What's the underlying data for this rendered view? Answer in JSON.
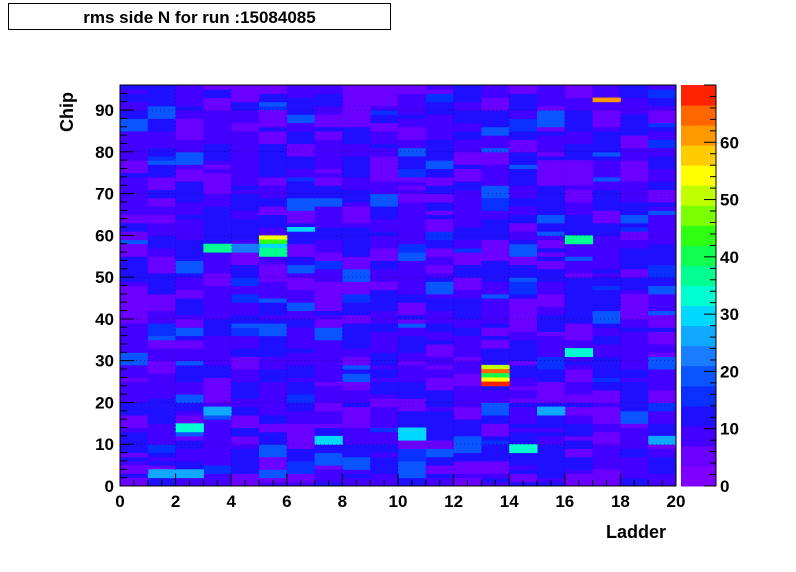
{
  "title": "rms side N for run :15084085",
  "chart_data": {
    "type": "heatmap",
    "title": "rms side N for run :15084085",
    "xlabel": "Ladder",
    "ylabel": "Chip",
    "xlim": [
      0,
      20
    ],
    "ylim": [
      0,
      96
    ],
    "x_ticks": [
      "0",
      "2",
      "4",
      "6",
      "8",
      "10",
      "12",
      "14",
      "16",
      "18",
      "20"
    ],
    "y_ticks": [
      "0",
      "10",
      "20",
      "30",
      "40",
      "50",
      "60",
      "70",
      "80",
      "90"
    ],
    "colorbar": {
      "range": [
        0,
        70
      ],
      "ticks": [
        "0",
        "10",
        "20",
        "30",
        "40",
        "50",
        "60"
      ]
    },
    "grid": true,
    "baseline_value": 10,
    "notable_cells": [
      {
        "ladder": 13,
        "chip_start": 28,
        "chip_end": 29,
        "value": 52
      },
      {
        "ladder": 13,
        "chip_start": 27,
        "chip_end": 28,
        "value": 65
      },
      {
        "ladder": 13,
        "chip_start": 26,
        "chip_end": 27,
        "value": 40
      },
      {
        "ladder": 13,
        "chip_start": 25,
        "chip_end": 26,
        "value": 55
      },
      {
        "ladder": 13,
        "chip_start": 24,
        "chip_end": 25,
        "value": 68
      },
      {
        "ladder": 5,
        "chip_start": 59,
        "chip_end": 60,
        "value": 55
      },
      {
        "ladder": 5,
        "chip_start": 58,
        "chip_end": 59,
        "value": 45
      },
      {
        "ladder": 5,
        "chip_start": 57,
        "chip_end": 58,
        "value": 30
      },
      {
        "ladder": 5,
        "chip_start": 55,
        "chip_end": 57,
        "value": 38
      },
      {
        "ladder": 4,
        "chip_start": 56,
        "chip_end": 58,
        "value": 22
      },
      {
        "ladder": 3,
        "chip_start": 56,
        "chip_end": 58,
        "value": 35
      },
      {
        "ladder": 16,
        "chip_start": 58,
        "chip_end": 60,
        "value": 36
      },
      {
        "ladder": 16,
        "chip_start": 31,
        "chip_end": 33,
        "value": 32
      },
      {
        "ladder": 6,
        "chip_start": 61,
        "chip_end": 62,
        "value": 30
      },
      {
        "ladder": 17,
        "chip_start": 92,
        "chip_end": 93,
        "value": 62
      },
      {
        "ladder": 2,
        "chip_start": 13,
        "chip_end": 15,
        "value": 32
      },
      {
        "ladder": 14,
        "chip_start": 8,
        "chip_end": 10,
        "value": 33
      },
      {
        "ladder": 19,
        "chip_start": 10,
        "chip_end": 12,
        "value": 27
      },
      {
        "ladder": 1,
        "chip_start": 2,
        "chip_end": 4,
        "value": 25
      },
      {
        "ladder": 2,
        "chip_start": 2,
        "chip_end": 4,
        "value": 27
      },
      {
        "ladder": 0,
        "chip_start": 0,
        "chip_end": 2,
        "value": 5
      },
      {
        "ladder": 0,
        "chip_start": 3,
        "chip_end": 5,
        "value": 6
      },
      {
        "ladder": 17,
        "chip_start": 0,
        "chip_end": 4,
        "value": 6
      },
      {
        "ladder": 8,
        "chip_start": 86,
        "chip_end": 96,
        "value": 5
      },
      {
        "ladder": 9,
        "chip_start": 91,
        "chip_end": 96,
        "value": 5
      },
      {
        "ladder": 15,
        "chip_start": 72,
        "chip_end": 78,
        "value": 5
      },
      {
        "ladder": 16,
        "chip_start": 72,
        "chip_end": 78,
        "value": 5
      },
      {
        "ladder": 4,
        "chip_start": 93,
        "chip_end": 96,
        "value": 5
      },
      {
        "ladder": 5,
        "chip_start": 86,
        "chip_end": 90,
        "value": 6
      },
      {
        "ladder": 5,
        "chip_start": 50,
        "chip_end": 53,
        "value": 5
      },
      {
        "ladder": 17,
        "chip_start": 86,
        "chip_end": 90,
        "value": 5
      },
      {
        "ladder": 18,
        "chip_start": 43,
        "chip_end": 46,
        "value": 6
      },
      {
        "ladder": 13,
        "chip_start": 33,
        "chip_end": 35,
        "value": 5
      },
      {
        "ladder": 10,
        "chip_start": 11,
        "chip_end": 14,
        "value": 28
      },
      {
        "ladder": 7,
        "chip_start": 10,
        "chip_end": 12,
        "value": 29
      },
      {
        "ladder": 15,
        "chip_start": 17,
        "chip_end": 19,
        "value": 26
      },
      {
        "ladder": 3,
        "chip_start": 17,
        "chip_end": 19,
        "value": 26
      }
    ]
  }
}
